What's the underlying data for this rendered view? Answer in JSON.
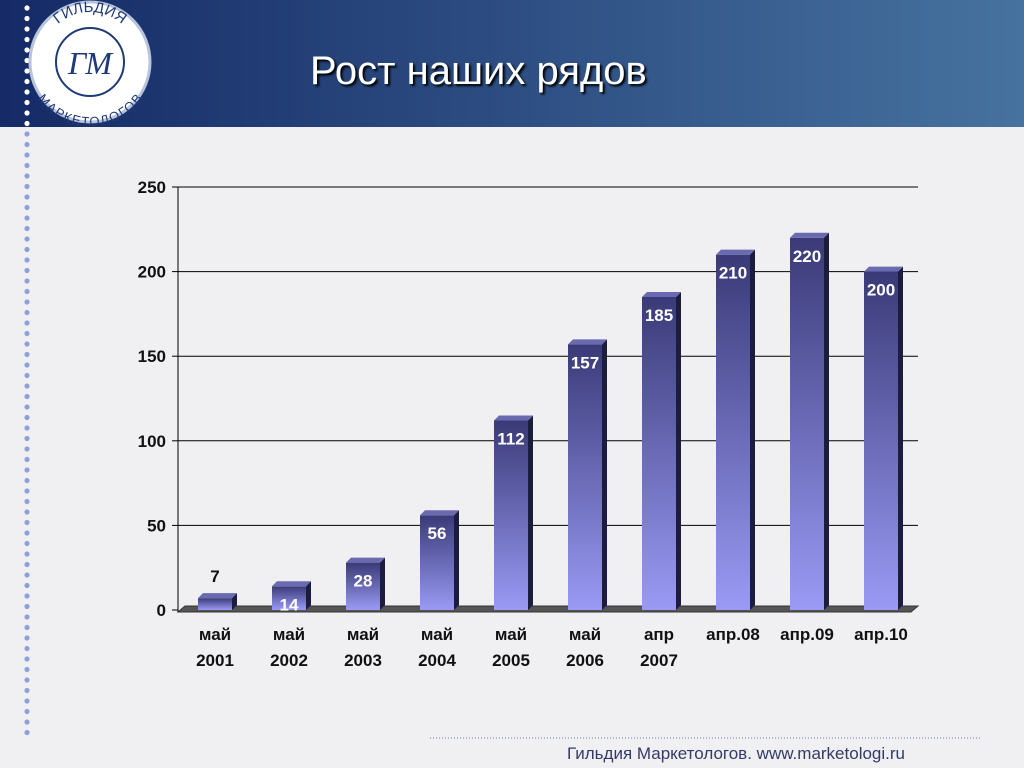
{
  "logo": {
    "top": "ГИЛЬДИЯ",
    "bottom": "МАРКЕТОЛОГОВ",
    "monogram": "ГМ"
  },
  "footer": "Гильдия Маркетологов. www.marketologi.ru",
  "chart_data": {
    "type": "bar",
    "title": "Рост наших рядов",
    "categories": [
      "май 2001",
      "май 2002",
      "май 2003",
      "май 2004",
      "май 2005",
      "май 2006",
      "апр 2007",
      "апр.08",
      "апр.09",
      "апр.10"
    ],
    "values": [
      7,
      14,
      28,
      56,
      112,
      157,
      185,
      210,
      220,
      200
    ],
    "color": "#4a4a90",
    "ylim": [
      0,
      250
    ],
    "yticks": [
      0,
      50,
      100,
      150,
      200,
      250
    ],
    "grid": true
  }
}
